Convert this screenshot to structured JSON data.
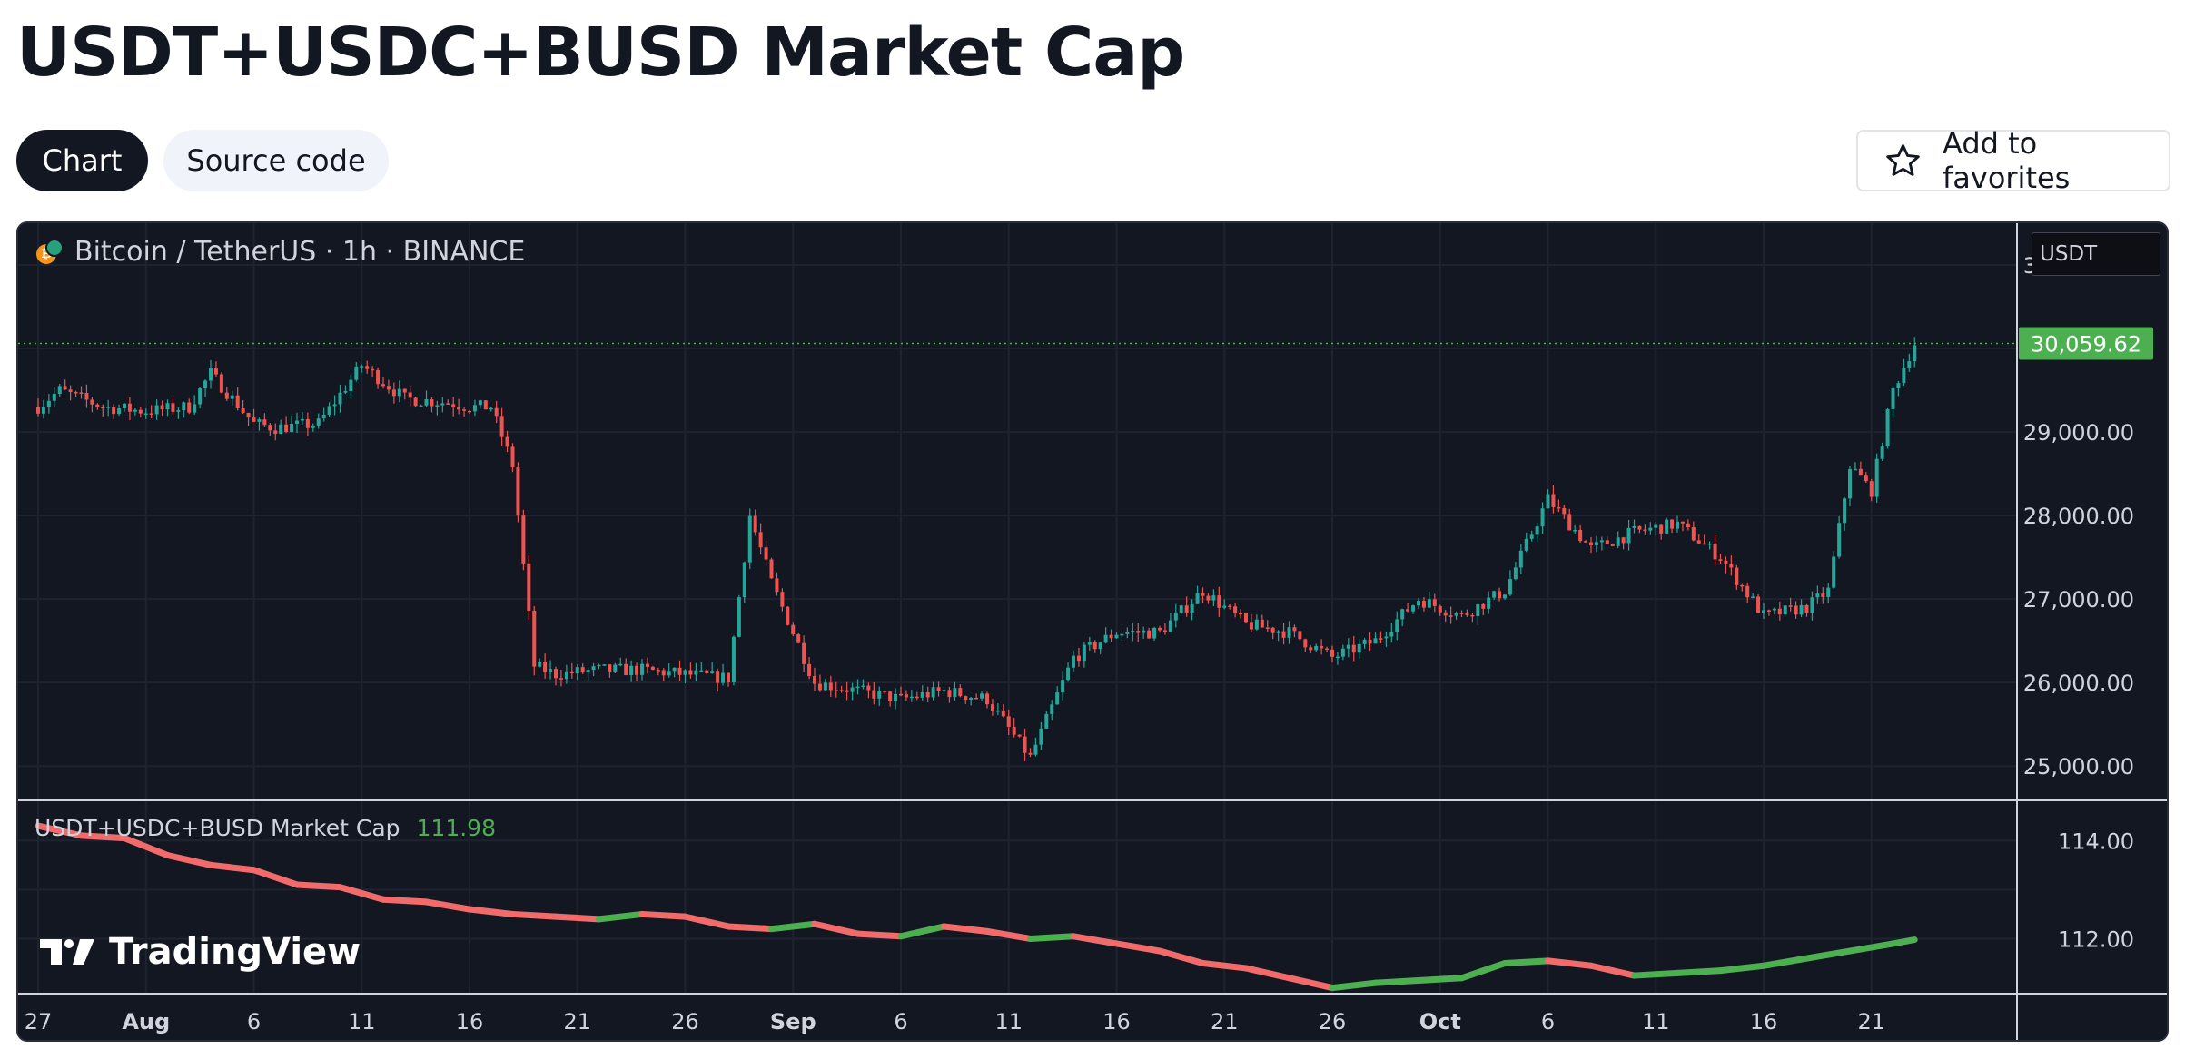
{
  "page": {
    "title": "USDT+USDC+BUSD Market Cap",
    "tabs": [
      {
        "label": "Chart",
        "active": true
      },
      {
        "label": "Source code",
        "active": false
      }
    ],
    "favorites_label": "Add to favorites",
    "favorites_icon": "star-outline-icon"
  },
  "chart": {
    "symbol_legend": "Bitcoin / TetherUS · 1h · BINANCE",
    "currency": "USDT",
    "last_price_label": "30,059.62",
    "indicator_name": "USDT+USDC+BUSD Market Cap",
    "indicator_value": "111.98",
    "brand": "TradingView",
    "colors": {
      "background": "#131722",
      "up": "#26a69a",
      "down": "#ef5350",
      "price_badge": "#4caf50",
      "indicator_down": "#f26b6b",
      "indicator_up": "#4caf50"
    },
    "price_axis_labels": [
      "31,000.00",
      "29,000.00",
      "28,000.00",
      "27,000.00",
      "26,000.00",
      "25,000.00"
    ],
    "indicator_axis_labels": [
      "114.00",
      "112.00"
    ],
    "time_axis_labels": [
      {
        "label": "27",
        "bold": false
      },
      {
        "label": "Aug",
        "bold": true
      },
      {
        "label": "6",
        "bold": false
      },
      {
        "label": "11",
        "bold": false
      },
      {
        "label": "16",
        "bold": false
      },
      {
        "label": "21",
        "bold": false
      },
      {
        "label": "26",
        "bold": false
      },
      {
        "label": "Sep",
        "bold": true
      },
      {
        "label": "6",
        "bold": false
      },
      {
        "label": "11",
        "bold": false
      },
      {
        "label": "16",
        "bold": false
      },
      {
        "label": "21",
        "bold": false
      },
      {
        "label": "26",
        "bold": false
      },
      {
        "label": "Oct",
        "bold": true
      },
      {
        "label": "6",
        "bold": false
      },
      {
        "label": "11",
        "bold": false
      },
      {
        "label": "16",
        "bold": false
      },
      {
        "label": "21",
        "bold": false
      }
    ]
  },
  "chart_data": [
    {
      "type": "line",
      "title": "Bitcoin / TetherUS · 1h · BINANCE",
      "x_labels": [
        "27",
        "Aug",
        "6",
        "11",
        "16",
        "21",
        "26",
        "Sep",
        "6",
        "11",
        "16",
        "21",
        "26",
        "Oct",
        "6",
        "11",
        "16",
        "21"
      ],
      "ylim": [
        24600,
        31500
      ],
      "series": [
        {
          "name": "",
          "x": [
            0,
            1,
            3,
            5,
            7,
            8,
            9,
            10,
            11,
            13,
            15,
            17,
            19,
            20,
            21,
            22,
            23,
            24,
            26,
            28,
            30,
            32,
            33,
            34,
            36,
            38,
            40,
            42,
            44,
            46,
            48,
            50,
            52,
            54,
            56,
            58,
            60,
            62,
            64,
            66,
            68,
            70,
            72,
            74,
            76,
            78,
            80,
            82,
            83,
            84,
            85,
            86,
            87
          ],
          "values": [
            29300,
            29500,
            29300,
            29250,
            29300,
            29700,
            29400,
            29100,
            29050,
            29100,
            29800,
            29400,
            29350,
            29300,
            29300,
            28600,
            26200,
            26100,
            26150,
            26150,
            26100,
            26050,
            28000,
            27200,
            26000,
            25900,
            25800,
            25900,
            25800,
            25100,
            26300,
            26600,
            26600,
            27100,
            26700,
            26600,
            26300,
            26500,
            27000,
            26800,
            27100,
            28200,
            27600,
            27800,
            27900,
            27500,
            26800,
            26900,
            27100,
            28600,
            28300,
            29500,
            30060
          ]
        }
      ]
    },
    {
      "type": "line",
      "title": "USDT+USDC+BUSD Market Cap",
      "x_labels": [
        "27",
        "Aug",
        "6",
        "11",
        "16",
        "21",
        "26",
        "Sep",
        "6",
        "11",
        "16",
        "21",
        "26",
        "Oct",
        "6",
        "11",
        "16",
        "21"
      ],
      "ylim": [
        110.9,
        114.8
      ],
      "series": [
        {
          "name": "USDT+USDC+BUSD Market Cap",
          "x": [
            0,
            2,
            4,
            6,
            8,
            10,
            12,
            14,
            16,
            18,
            20,
            22,
            24,
            26,
            28,
            30,
            32,
            34,
            36,
            38,
            40,
            42,
            44,
            46,
            48,
            50,
            52,
            54,
            56,
            58,
            60,
            62,
            64,
            66,
            68,
            70,
            72,
            74,
            76,
            78,
            80,
            82,
            84,
            86,
            87
          ],
          "values": [
            114.3,
            114.1,
            114.05,
            113.7,
            113.5,
            113.4,
            113.1,
            113.05,
            112.8,
            112.75,
            112.6,
            112.5,
            112.45,
            112.4,
            112.5,
            112.45,
            112.25,
            112.2,
            112.3,
            112.1,
            112.05,
            112.25,
            112.15,
            112.0,
            112.05,
            111.9,
            111.75,
            111.5,
            111.4,
            111.2,
            111.0,
            111.1,
            111.15,
            111.2,
            111.5,
            111.55,
            111.45,
            111.25,
            111.3,
            111.35,
            111.45,
            111.6,
            111.75,
            111.9,
            111.98
          ]
        }
      ]
    }
  ]
}
